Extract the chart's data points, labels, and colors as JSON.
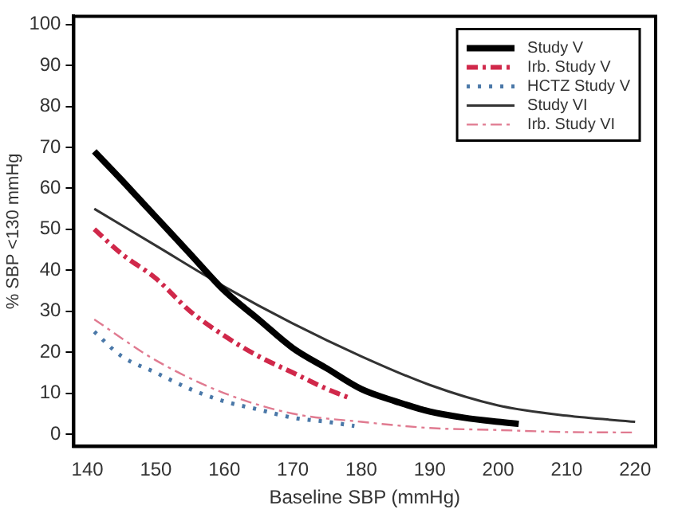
{
  "chart_data": {
    "type": "line",
    "xlabel": "Baseline SBP (mmHg)",
    "ylabel": "% SBP <130 mmHg",
    "xlim": [
      138,
      223
    ],
    "xticks": [
      140,
      150,
      160,
      170,
      180,
      190,
      200,
      210,
      220
    ],
    "ylim": [
      -3,
      102
    ],
    "yticks": [
      0,
      10,
      20,
      30,
      40,
      50,
      60,
      70,
      80,
      90,
      100
    ],
    "grid": false,
    "legend": "top right",
    "marker": "none",
    "series": [
      {
        "name": "Study V",
        "color": "#000000",
        "line_style": "solid",
        "x": [
          141,
          145,
          150,
          155,
          160,
          165,
          170,
          175,
          180,
          185,
          190,
          195,
          200,
          203
        ],
        "values": [
          69,
          62,
          53,
          44,
          35,
          28,
          21,
          16,
          11,
          8,
          5.5,
          4,
          3,
          2.5
        ]
      },
      {
        "name": "Irb. Study V",
        "color": "#d0284a",
        "line_style": "dashed",
        "x": [
          141,
          145,
          150,
          155,
          160,
          165,
          170,
          175,
          178
        ],
        "values": [
          50,
          44,
          38,
          30,
          24,
          19,
          15,
          11,
          9
        ]
      },
      {
        "name": "HCTZ Study V",
        "color": "#4a78a8",
        "line_style": "dotted",
        "x": [
          141,
          145,
          150,
          155,
          160,
          165,
          170,
          175,
          179
        ],
        "values": [
          25,
          19,
          15,
          11,
          8,
          6,
          4,
          3,
          2
        ]
      },
      {
        "name": "Study VI",
        "color": "#333333",
        "line_style": "solid",
        "x": [
          141,
          150,
          160,
          170,
          180,
          190,
          200,
          210,
          220
        ],
        "values": [
          55,
          46,
          36,
          27,
          19,
          12,
          7,
          4.5,
          3
        ]
      },
      {
        "name": "Irb. Study VI",
        "color": "#e07a90",
        "line_style": "dashed",
        "x": [
          141,
          150,
          160,
          170,
          180,
          190,
          200,
          210,
          220
        ],
        "values": [
          28,
          18,
          10,
          5,
          3,
          1.5,
          1,
          0.5,
          0.4
        ]
      }
    ]
  }
}
